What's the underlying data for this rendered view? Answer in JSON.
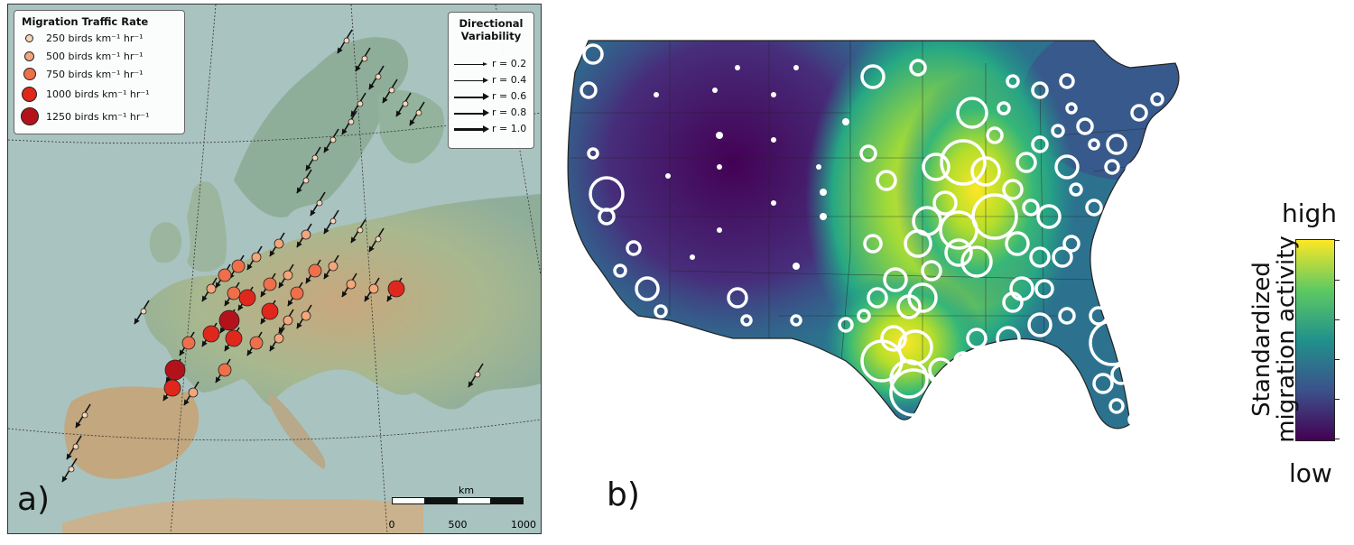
{
  "panel_a": {
    "label": "a)",
    "rate_legend": {
      "title": "Migration Traffic Rate",
      "items": [
        {
          "label": "250 birds km⁻¹ hr⁻¹",
          "color": "#f6d5b8"
        },
        {
          "label": "500 birds km⁻¹ hr⁻¹",
          "color": "#f3a67c"
        },
        {
          "label": "750 birds km⁻¹ hr⁻¹",
          "color": "#ef6f4a"
        },
        {
          "label": "1000 birds km⁻¹ hr⁻¹",
          "color": "#e0271c"
        },
        {
          "label": "1250 birds km⁻¹ hr⁻¹",
          "color": "#b3121b"
        }
      ]
    },
    "variability_legend": {
      "title_line1": "Directional",
      "title_line2": "Variability",
      "items": [
        "r = 0.2",
        "r = 0.4",
        "r = 0.6",
        "r = 0.8",
        "r = 1.0"
      ]
    },
    "scalebar": {
      "unit": "km",
      "ticks": [
        "0",
        "500",
        "1000"
      ]
    }
  },
  "panel_b": {
    "label": "b)",
    "colorbar": {
      "high": "high",
      "low": "low",
      "title_line1": "Standardized",
      "title_line2": "migration activity"
    }
  },
  "colors": {
    "sea": "#a9c3c0",
    "land": "#8fae9a",
    "viridis_low": "#440154",
    "viridis_high": "#fde725"
  }
}
